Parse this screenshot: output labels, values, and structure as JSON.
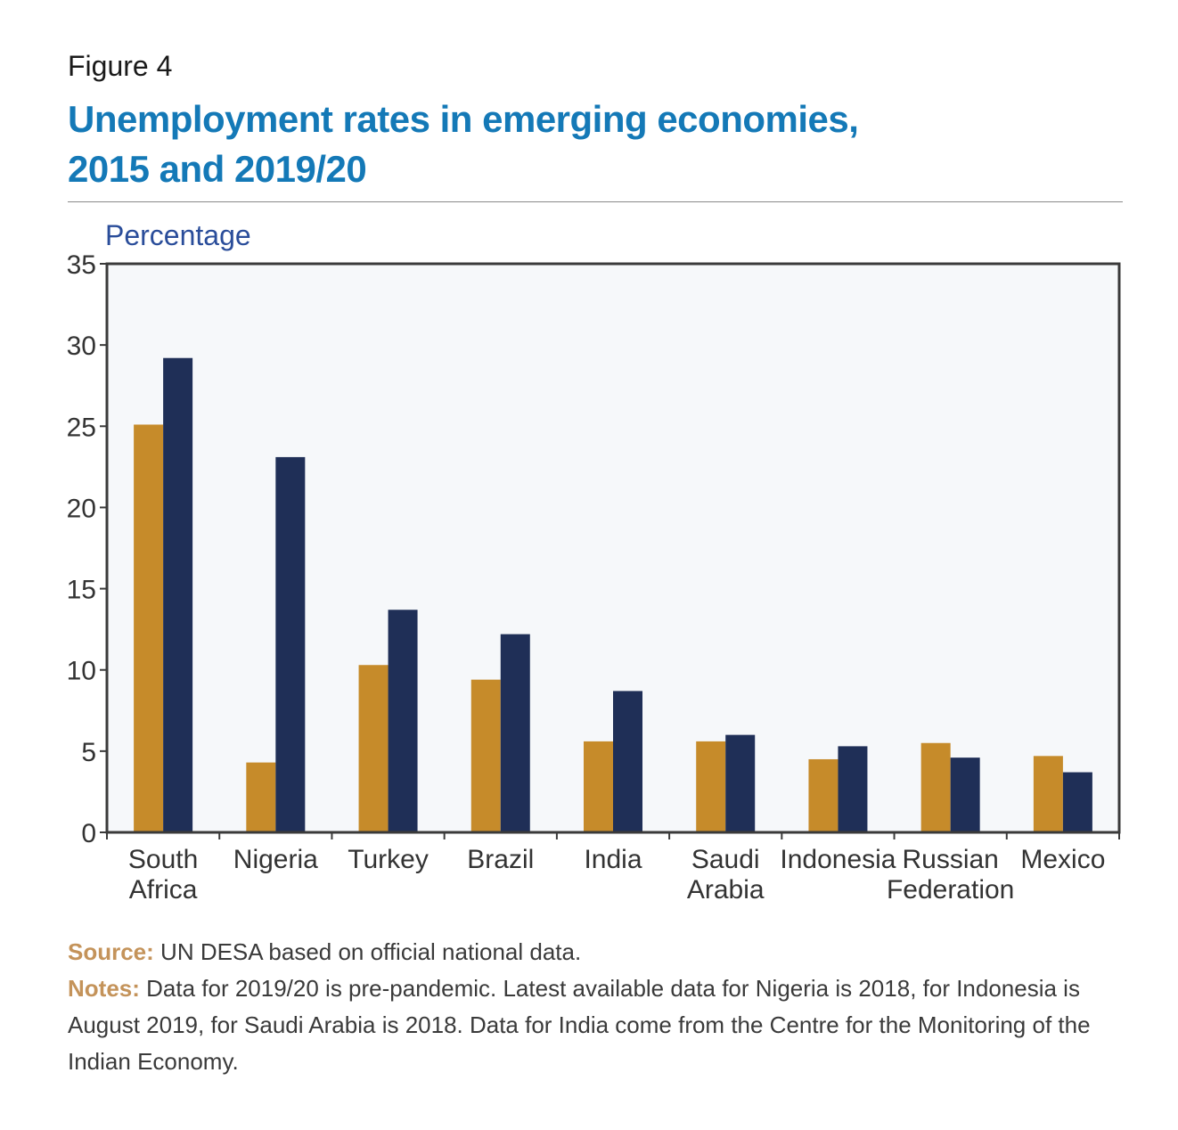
{
  "figure_label": "Figure 4",
  "title_line1": "Unemployment rates in emerging economies,",
  "title_line2": "2015 and 2019/20",
  "colors": {
    "series_2015": "#c68b2a",
    "series_2019": "#1f2f57",
    "plot_bg": "#f6f8fa",
    "title": "#1479b7"
  },
  "chart_data": {
    "type": "bar",
    "ylabel": "Percentage",
    "ylim": [
      0,
      35
    ],
    "yticks": [
      0,
      5,
      10,
      15,
      20,
      25,
      30,
      35
    ],
    "categories": [
      [
        "South",
        "Africa"
      ],
      [
        "Nigeria"
      ],
      [
        "Turkey"
      ],
      [
        "Brazil"
      ],
      [
        "India"
      ],
      [
        "Saudi",
        "Arabia"
      ],
      [
        "Indonesia"
      ],
      [
        "Russian",
        "Federation"
      ],
      [
        "Mexico"
      ]
    ],
    "series": [
      {
        "values": [
          25.1,
          4.3,
          10.3,
          9.4,
          5.6,
          5.6,
          4.5,
          5.5,
          4.7
        ]
      },
      {
        "values": [
          29.2,
          23.1,
          13.7,
          12.2,
          8.7,
          6.0,
          5.3,
          4.6,
          3.7
        ]
      }
    ],
    "legend": false,
    "grid": false
  },
  "source_key": "Source:",
  "source_text": " UN DESA based on official national data.",
  "notes_key": "Notes:",
  "notes_text": " Data for 2019/20 is pre-pandemic. Latest available data for Nigeria is 2018, for Indonesia is August 2019, for Saudi Arabia is 2018. Data for India come from the Centre for the Monitoring of the Indian Economy."
}
